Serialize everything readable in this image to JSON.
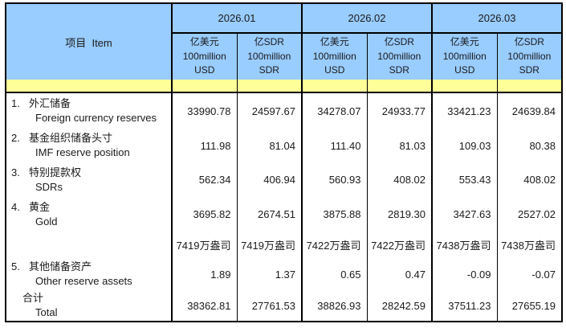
{
  "table": {
    "item_header": "项目  Item",
    "months": [
      "2026.01",
      "2026.02",
      "2026.03"
    ],
    "unit_usd": {
      "l1": "亿美元",
      "l2": "100million",
      "l3": "USD"
    },
    "unit_sdr": {
      "l1": "亿SDR",
      "l2": "100million",
      "l3": "SDR"
    },
    "rows": [
      {
        "num": "1.",
        "zh": "外汇储备",
        "en": "Foreign currency reserves",
        "values": [
          "33990.78",
          "24597.67",
          "34278.07",
          "24933.77",
          "33421.23",
          "24639.84"
        ]
      },
      {
        "num": "2.",
        "zh": "基金组织储备头寸",
        "en": "IMF reserve position",
        "values": [
          "111.98",
          "81.04",
          "111.40",
          "81.03",
          "109.03",
          "80.38"
        ]
      },
      {
        "num": "3.",
        "zh": "特别提款权",
        "en": "SDRs",
        "values": [
          "562.34",
          "406.94",
          "560.93",
          "408.02",
          "553.43",
          "408.02"
        ]
      },
      {
        "num": "4.",
        "zh": "黄金",
        "en": "Gold",
        "values": [
          "3695.82",
          "2674.51",
          "3875.88",
          "2819.30",
          "3427.63",
          "2527.02"
        ]
      },
      {
        "num": "",
        "zh": "",
        "en": "",
        "values": [
          "7419万盎司",
          "7419万盎司",
          "7422万盎司",
          "7422万盎司",
          "7438万盎司",
          "7438万盎司"
        ]
      },
      {
        "num": "5.",
        "zh": "其他储备资产",
        "en": "Other reserve assets",
        "values": [
          "1.89",
          "1.37",
          "0.65",
          "0.47",
          "-0.09",
          "-0.07"
        ]
      },
      {
        "num": "",
        "zh": "合计",
        "en": "Total",
        "values": [
          "38362.81",
          "27761.53",
          "38826.93",
          "28242.59",
          "37511.23",
          "27655.19"
        ]
      }
    ],
    "colors": {
      "header_blue": "#99CCFF",
      "separator_yellow": "#FFFF99",
      "border": "#000000"
    }
  }
}
